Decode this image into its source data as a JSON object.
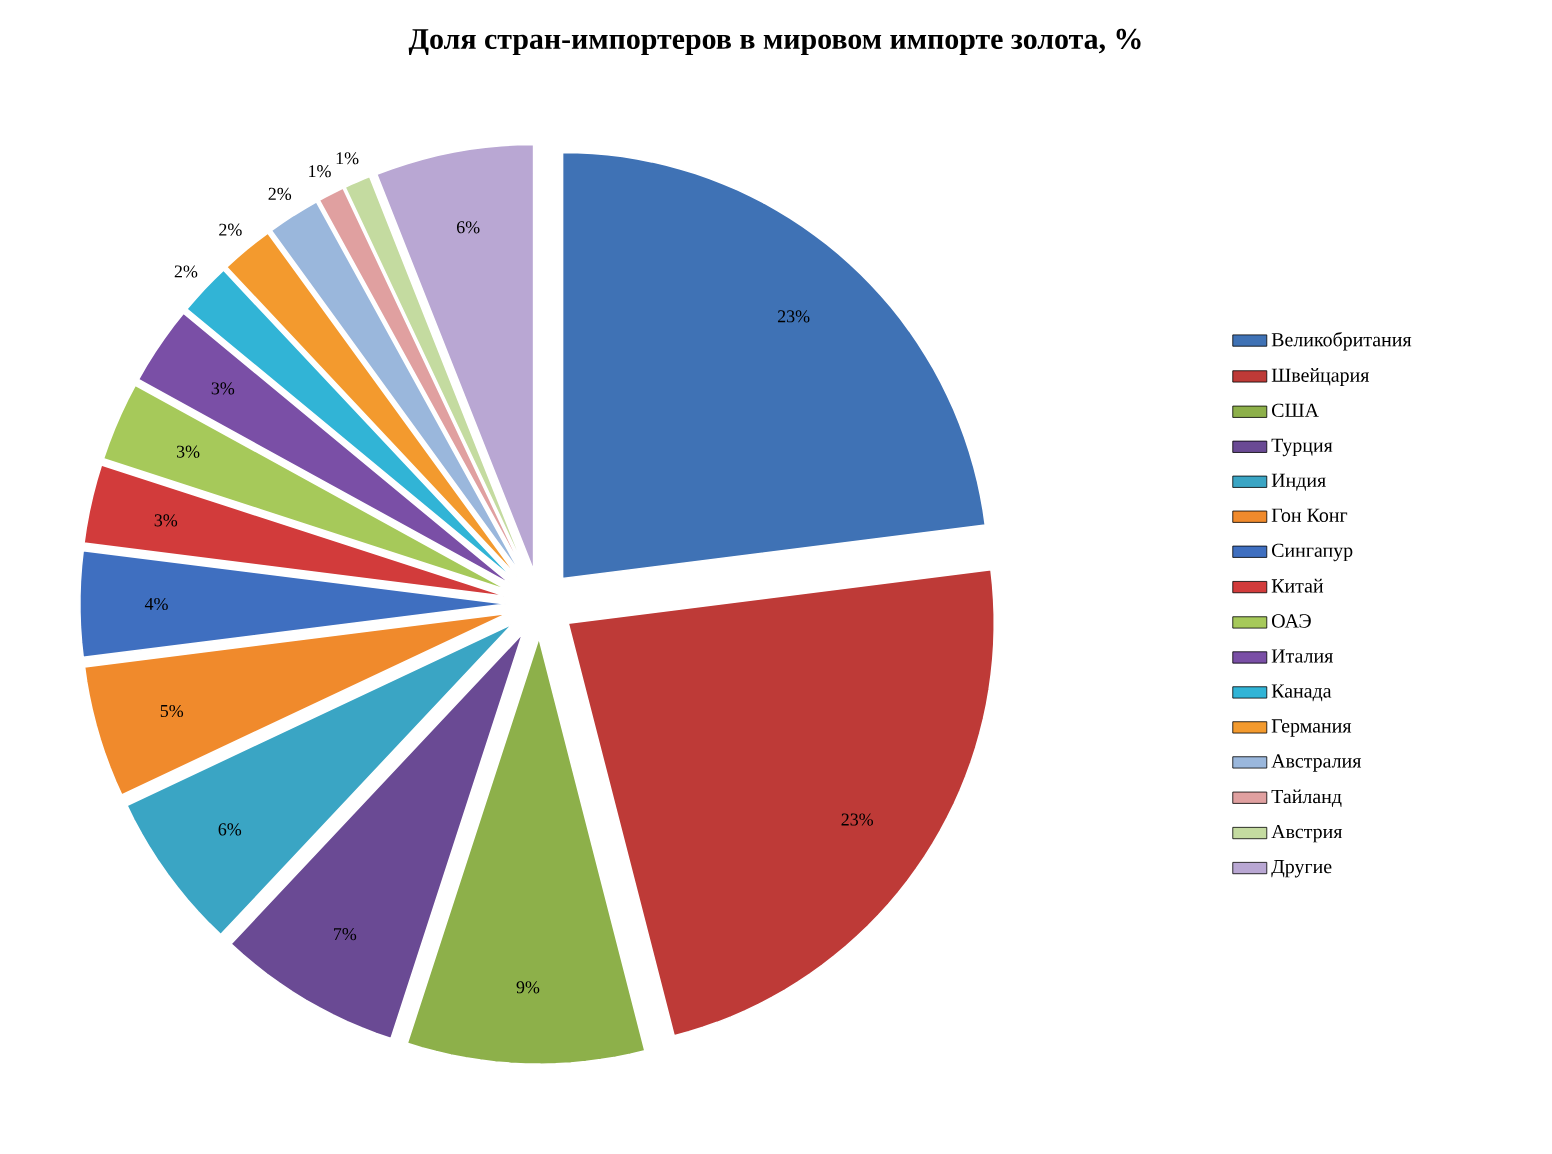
{
  "chart_data": {
    "type": "pie",
    "title": "Доля стран-импортеров в мировом импорте золота, %",
    "categories": [
      "Великобритания",
      "Швейцария",
      "США",
      "Турция",
      "Индия",
      "Гон Конг",
      "Сингапур",
      "Китай",
      "ОАЭ",
      "Италия",
      "Канада",
      "Германия",
      "Австралия",
      "Тайланд",
      "Австрия",
      "Другие"
    ],
    "values": [
      23,
      23,
      9,
      7,
      6,
      5,
      4,
      3,
      3,
      3,
      2,
      2,
      2,
      1,
      1,
      6
    ],
    "value_labels": [
      "23%",
      "23%",
      "9%",
      "7%",
      "6%",
      "5%",
      "4%",
      "3%",
      "3%",
      "3%",
      "2%",
      "2%",
      "2%",
      "1%",
      "1%",
      "6%"
    ],
    "colors": [
      "#3f72b5",
      "#be3a37",
      "#8db04a",
      "#6a4a94",
      "#3aa5c4",
      "#f08a2c",
      "#3f6fc0",
      "#d23b3b",
      "#a6c95a",
      "#7a4fa6",
      "#31b4d6",
      "#f39a2e",
      "#9ab7dc",
      "#e0a0a0",
      "#c4dba0",
      "#b9a7d3"
    ],
    "legend": "right"
  }
}
